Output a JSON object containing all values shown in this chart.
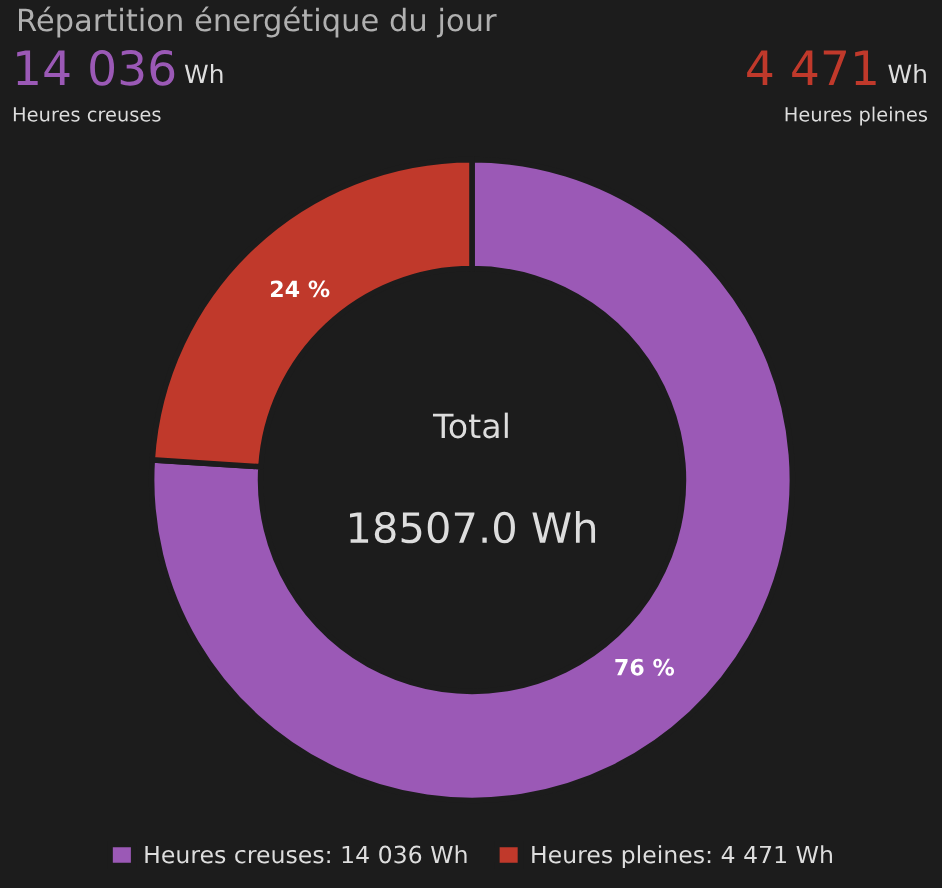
{
  "chart_data": {
    "type": "donut",
    "title": "Répartition énergétique du jour",
    "categories": [
      "Heures creuses: 14 036 Wh",
      "Heures pleines: 4 471 Wh"
    ],
    "values": [
      76,
      24
    ],
    "colors": [
      "#9b59b6",
      "#c0392b"
    ],
    "value_labels": [
      "76 %",
      "24 %"
    ],
    "legend": "bottom",
    "annotations": [
      "14 036",
      "Wh",
      "Heures creuses",
      "4 471",
      "Wh",
      "Heures pleines",
      "Total",
      "18507.0 Wh"
    ]
  }
}
